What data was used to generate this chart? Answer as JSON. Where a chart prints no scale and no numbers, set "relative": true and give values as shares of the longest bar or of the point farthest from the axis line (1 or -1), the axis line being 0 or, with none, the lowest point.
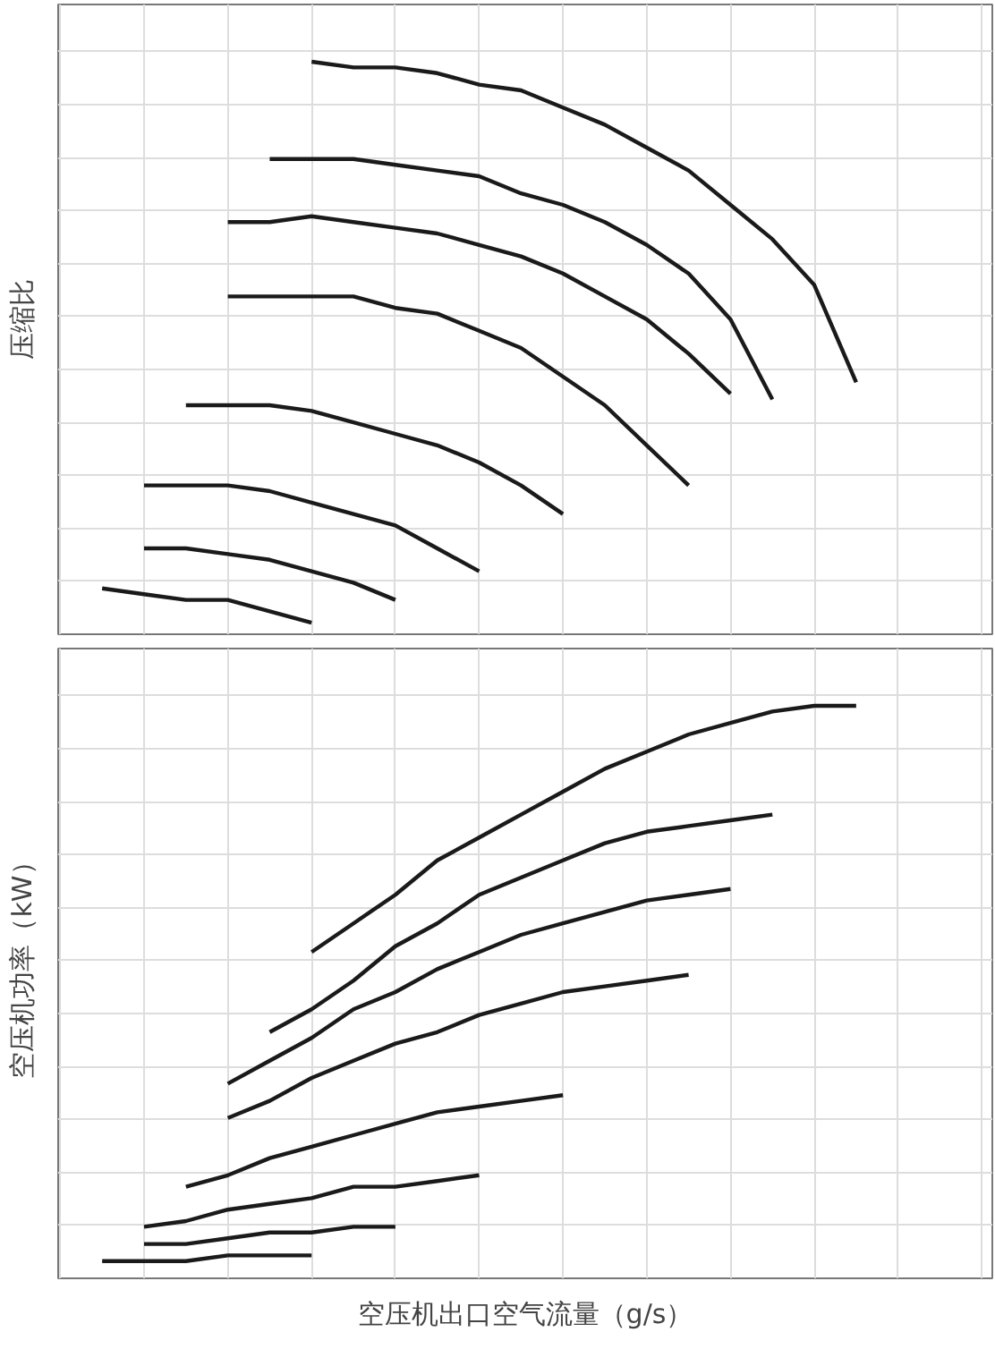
{
  "chart_data": [
    {
      "type": "line",
      "relative": true,
      "ylabel": "压缩比",
      "grid": true,
      "tick_labels": false,
      "marker": "none",
      "line_style": "solid",
      "categories": [
        null,
        null,
        null,
        null,
        null,
        null,
        null,
        null,
        null,
        null,
        null,
        null,
        null,
        null,
        null,
        null,
        null,
        null,
        null,
        null,
        null,
        null,
        null
      ],
      "series": [
        {
          "color": "#1a1a1a",
          "values": [
            null,
            null,
            null,
            null,
            null,
            null,
            1.0,
            0.99,
            0.99,
            0.98,
            0.96,
            0.95,
            0.92,
            0.89,
            0.85,
            0.81,
            0.75,
            0.69,
            0.61,
            0.44,
            null,
            null,
            null
          ]
        },
        {
          "color": "#1a1a1a",
          "values": [
            null,
            null,
            null,
            null,
            null,
            0.83,
            0.83,
            0.83,
            0.82,
            0.81,
            0.8,
            0.77,
            0.75,
            0.72,
            0.68,
            0.63,
            0.55,
            0.41,
            null,
            null,
            null,
            null,
            null
          ]
        },
        {
          "color": "#1a1a1a",
          "values": [
            null,
            null,
            null,
            null,
            0.72,
            0.72,
            0.73,
            0.72,
            0.71,
            0.7,
            0.68,
            0.66,
            0.63,
            0.59,
            0.55,
            0.49,
            0.42,
            null,
            null,
            null,
            null,
            null,
            null
          ]
        },
        {
          "color": "#1a1a1a",
          "values": [
            null,
            null,
            null,
            null,
            0.59,
            0.59,
            0.59,
            0.59,
            0.57,
            0.56,
            0.53,
            0.5,
            0.45,
            0.4,
            0.33,
            0.26,
            null,
            null,
            null,
            null,
            null,
            null,
            null
          ]
        },
        {
          "color": "#1a1a1a",
          "values": [
            null,
            null,
            null,
            0.4,
            0.4,
            0.4,
            0.39,
            0.37,
            0.35,
            0.33,
            0.3,
            0.26,
            0.21,
            null,
            null,
            null,
            null,
            null,
            null,
            null,
            null,
            null,
            null
          ]
        },
        {
          "color": "#1a1a1a",
          "values": [
            null,
            null,
            0.26,
            0.26,
            0.26,
            0.25,
            0.23,
            0.21,
            0.19,
            0.15,
            0.11,
            null,
            null,
            null,
            null,
            null,
            null,
            null,
            null,
            null,
            null,
            null,
            null
          ]
        },
        {
          "color": "#1a1a1a",
          "values": [
            null,
            null,
            0.15,
            0.15,
            0.14,
            0.13,
            0.11,
            0.09,
            0.06,
            null,
            null,
            null,
            null,
            null,
            null,
            null,
            null,
            null,
            null,
            null,
            null,
            null,
            null
          ]
        },
        {
          "color": "#1a1a1a",
          "values": [
            null,
            0.08,
            0.07,
            0.06,
            0.06,
            0.04,
            0.02,
            null,
            null,
            null,
            null,
            null,
            null,
            null,
            null,
            null,
            null,
            null,
            null,
            null,
            null,
            null,
            null
          ]
        }
      ]
    },
    {
      "type": "line",
      "relative": true,
      "ylabel": "空压机功率（kW）",
      "xlabel": "空压机出口空气流量（g/s）",
      "grid": true,
      "tick_labels": false,
      "marker": "none",
      "line_style": "solid",
      "categories": [
        null,
        null,
        null,
        null,
        null,
        null,
        null,
        null,
        null,
        null,
        null,
        null,
        null,
        null,
        null,
        null,
        null,
        null,
        null,
        null,
        null,
        null,
        null
      ],
      "series": [
        {
          "color": "#1a1a1a",
          "values": [
            null,
            null,
            null,
            null,
            null,
            null,
            0.57,
            0.62,
            0.67,
            0.73,
            0.77,
            0.81,
            0.85,
            0.89,
            0.92,
            0.95,
            0.97,
            0.99,
            1.0,
            1.0,
            null,
            null,
            null
          ]
        },
        {
          "color": "#1a1a1a",
          "values": [
            null,
            null,
            null,
            null,
            null,
            0.43,
            0.47,
            0.52,
            0.58,
            0.62,
            0.67,
            0.7,
            0.73,
            0.76,
            0.78,
            0.79,
            0.8,
            0.81,
            null,
            null,
            null,
            null,
            null
          ]
        },
        {
          "color": "#1a1a1a",
          "values": [
            null,
            null,
            null,
            null,
            0.34,
            0.38,
            0.42,
            0.47,
            0.5,
            0.54,
            0.57,
            0.6,
            0.62,
            0.64,
            0.66,
            0.67,
            0.68,
            null,
            null,
            null,
            null,
            null,
            null
          ]
        },
        {
          "color": "#1a1a1a",
          "values": [
            null,
            null,
            null,
            null,
            0.28,
            0.31,
            0.35,
            0.38,
            0.41,
            0.43,
            0.46,
            0.48,
            0.5,
            0.51,
            0.52,
            0.53,
            null,
            null,
            null,
            null,
            null,
            null,
            null
          ]
        },
        {
          "color": "#1a1a1a",
          "values": [
            null,
            null,
            null,
            0.16,
            0.18,
            0.21,
            0.23,
            0.25,
            0.27,
            0.29,
            0.3,
            0.31,
            0.32,
            null,
            null,
            null,
            null,
            null,
            null,
            null,
            null,
            null,
            null
          ]
        },
        {
          "color": "#1a1a1a",
          "values": [
            null,
            null,
            0.09,
            0.1,
            0.12,
            0.13,
            0.14,
            0.16,
            0.16,
            0.17,
            0.18,
            null,
            null,
            null,
            null,
            null,
            null,
            null,
            null,
            null,
            null,
            null,
            null
          ]
        },
        {
          "color": "#1a1a1a",
          "values": [
            null,
            null,
            0.06,
            0.06,
            0.07,
            0.08,
            0.08,
            0.09,
            0.09,
            null,
            null,
            null,
            null,
            null,
            null,
            null,
            null,
            null,
            null,
            null,
            null,
            null,
            null
          ]
        },
        {
          "color": "#1a1a1a",
          "values": [
            null,
            0.03,
            0.03,
            0.03,
            0.04,
            0.04,
            0.04,
            null,
            null,
            null,
            null,
            null,
            null,
            null,
            null,
            null,
            null,
            null,
            null,
            null,
            null,
            null,
            null
          ]
        }
      ]
    }
  ]
}
